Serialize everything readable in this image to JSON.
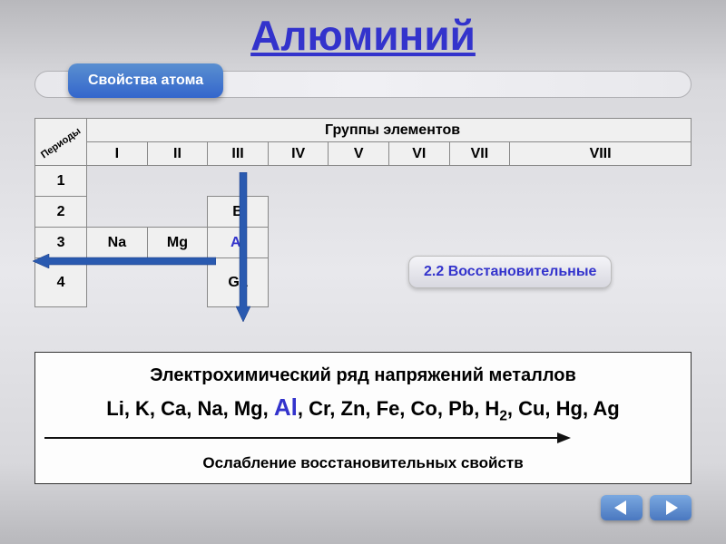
{
  "title": "Алюминий",
  "subtitle": "Свойства атома",
  "periods_label": "Периоды",
  "groups_label": "Группы элементов",
  "groups": [
    "I",
    "II",
    "III",
    "IV",
    "V",
    "VI",
    "VII",
    "VIII"
  ],
  "periods": [
    "1",
    "2",
    "3",
    "4"
  ],
  "elements": {
    "Na": "Na",
    "Mg": "Mg",
    "B": "B",
    "Al": "Al",
    "Ga": "Ga"
  },
  "restore_label": "2.2 Восстановительные",
  "series": {
    "title": "Электрохимический ряд напряжений металлов",
    "items": [
      "Li",
      "K",
      "Ca",
      "Na",
      "Mg",
      "Al",
      "Cr",
      "Zn",
      "Fe",
      "Co",
      "Pb",
      "H₂",
      "Cu",
      "Hg",
      "Ag"
    ],
    "highlight": "Al",
    "caption": "Ослабление восстановительных свойств"
  },
  "colors": {
    "accent": "#3333cc",
    "arrow": "#2a5ab0",
    "black_arrow": "#111111"
  }
}
